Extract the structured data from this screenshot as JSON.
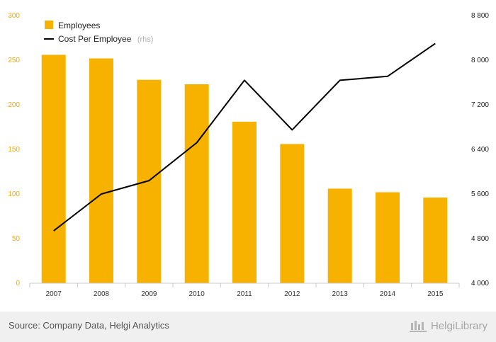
{
  "chart_data": {
    "type": "bar+line",
    "categories": [
      "2007",
      "2008",
      "2009",
      "2010",
      "2011",
      "2012",
      "2013",
      "2014",
      "2015"
    ],
    "series": [
      {
        "name": "Employees",
        "type": "bar",
        "axis": "left",
        "values": [
          256,
          252,
          228,
          223,
          181,
          156,
          106,
          102,
          96
        ]
      },
      {
        "name": "Cost Per Employee",
        "name_suffix": "(rhs)",
        "type": "line",
        "axis": "right",
        "values": [
          4940,
          5600,
          5840,
          6520,
          7640,
          6750,
          7640,
          7710,
          8300
        ]
      }
    ],
    "left_axis": {
      "ylim": [
        0,
        300
      ],
      "ticks": [
        "0",
        "50",
        "100",
        "150",
        "200",
        "250",
        "300"
      ]
    },
    "right_axis": {
      "ylim": [
        4000,
        8800
      ],
      "ticks": [
        "4 000",
        "4 800",
        "5 600",
        "6 400",
        "7 200",
        "8 000",
        "8 800"
      ]
    },
    "grid": false,
    "legend_position": "top-left",
    "colors": {
      "bar": "#f7b200",
      "line": "#000000",
      "left_tick": "#f2a900"
    }
  },
  "footer": {
    "source": "Source: Company Data, Helgi Analytics",
    "brand": "HelgiLibrary"
  }
}
